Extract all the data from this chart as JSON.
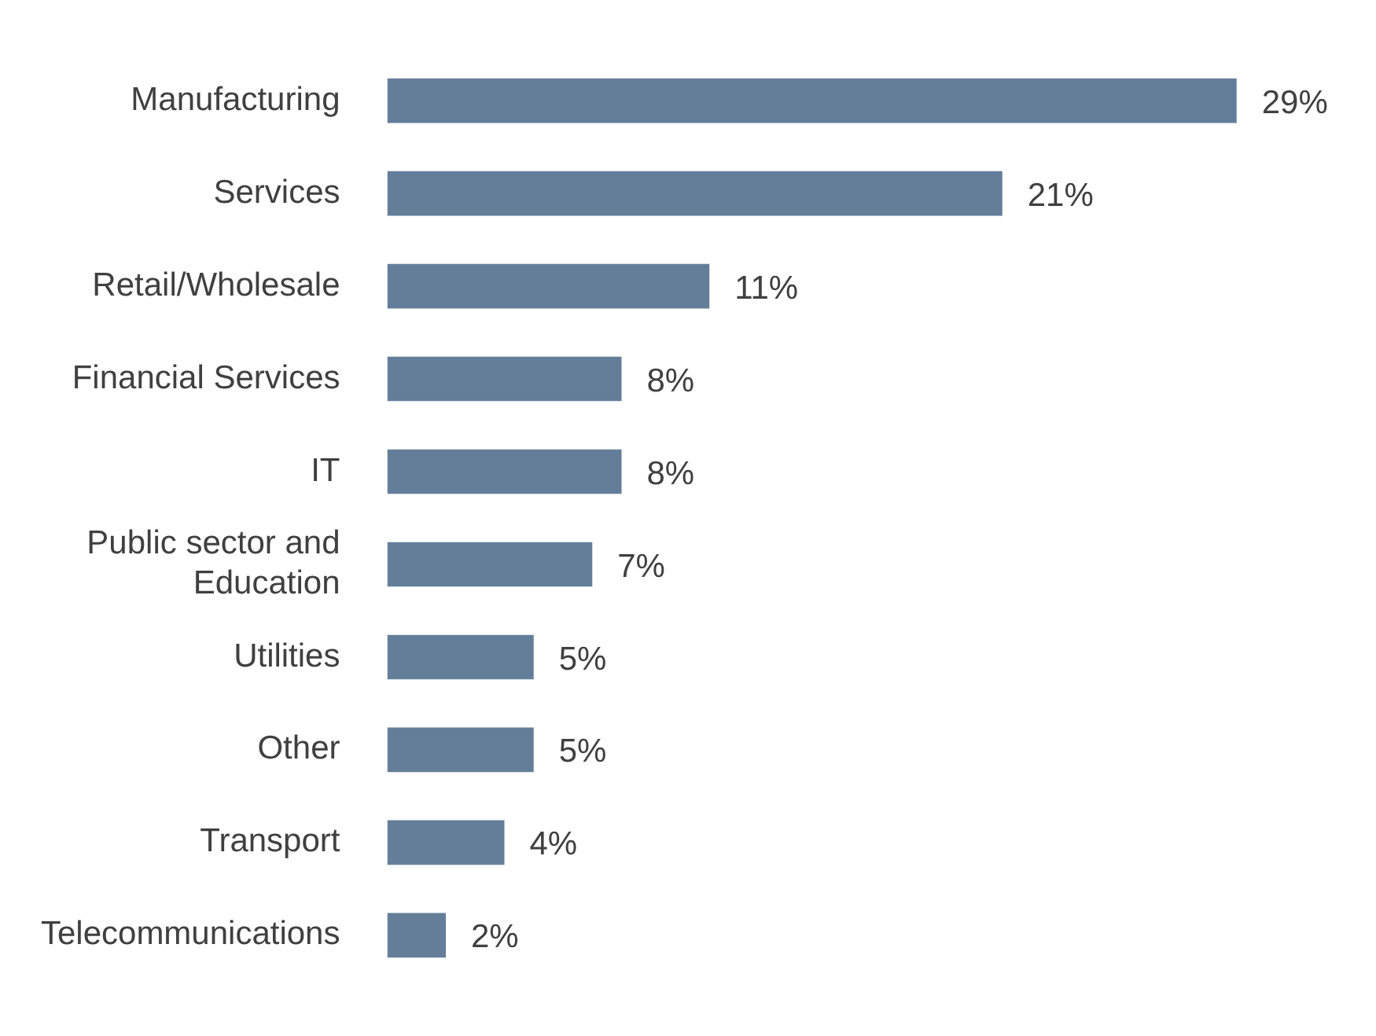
{
  "chart_data": {
    "type": "bar",
    "orientation": "horizontal",
    "categories": [
      "Manufacturing",
      "Services",
      "Retail/Wholesale",
      "Financial Services",
      "IT",
      "Public sector and Education",
      "Utilities",
      "Other",
      "Transport",
      "Telecommunications"
    ],
    "values": [
      29,
      21,
      11,
      8,
      8,
      7,
      5,
      5,
      4,
      2
    ],
    "value_labels": [
      "29%",
      "21%",
      "11%",
      "8%",
      "8%",
      "7%",
      "5%",
      "5%",
      "4%",
      "2%"
    ],
    "color": "#647e99"
  }
}
